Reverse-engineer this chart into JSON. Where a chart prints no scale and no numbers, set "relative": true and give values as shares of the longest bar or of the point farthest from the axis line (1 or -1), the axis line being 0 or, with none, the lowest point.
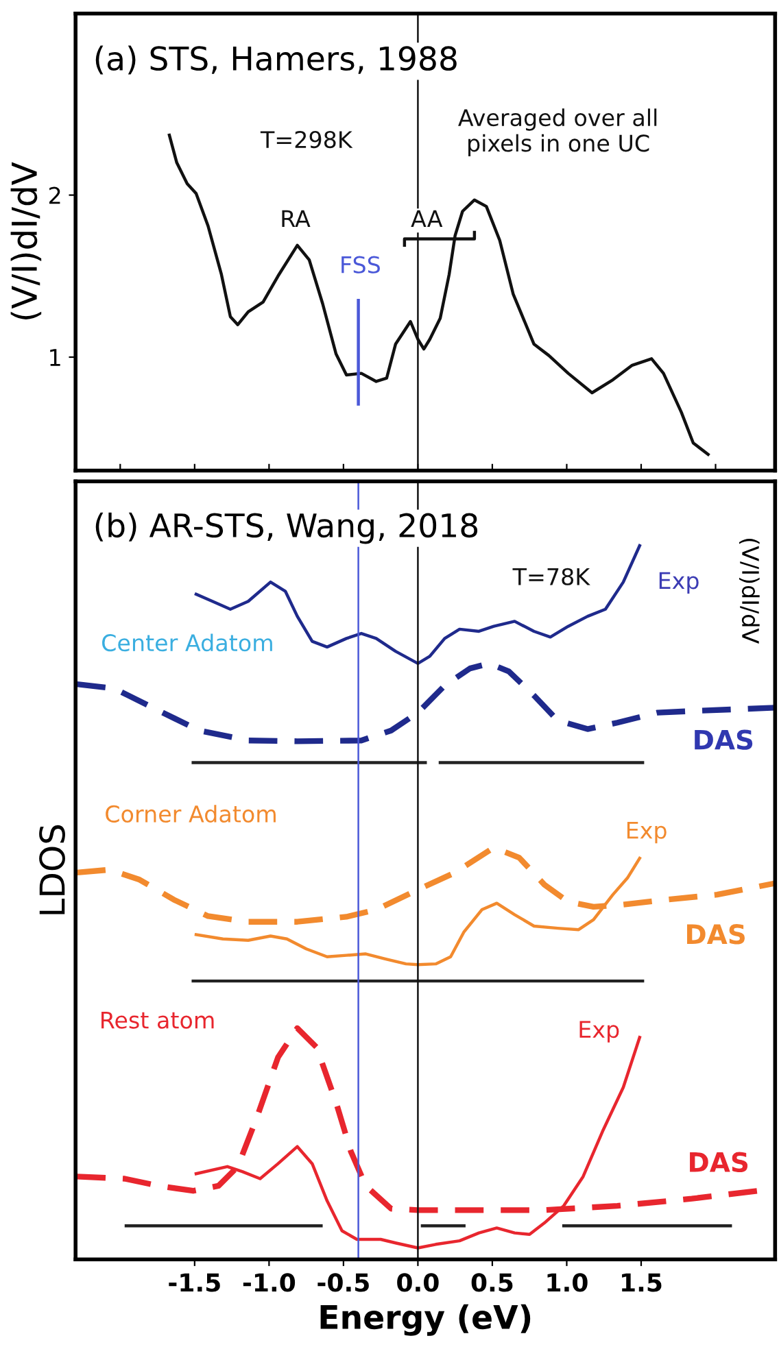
{
  "chart_data": [
    {
      "type": "line",
      "title": "(a) STS, Hamers, 1988",
      "ylabel": "(V/I)dI/dV",
      "xlim": [
        -2.3,
        2.4
      ],
      "ylim": [
        0.3,
        3.12
      ],
      "xticks": [
        {
          "value": -2.0,
          "label": null
        },
        {
          "value": -1.5,
          "label": null
        },
        {
          "value": -1.0,
          "label": null
        },
        {
          "value": -0.5,
          "label": null
        },
        {
          "value": 0.0,
          "label": null
        },
        {
          "value": 0.5,
          "label": null
        },
        {
          "value": 1.0,
          "label": null
        },
        {
          "value": 1.5,
          "label": null
        },
        {
          "value": 2.0,
          "label": null
        }
      ],
      "yticks": [
        1,
        2
      ],
      "tick_labels": "y",
      "grid": false,
      "series": [
        {
          "color": "#111111",
          "line_style": "solid",
          "x": [
            -1.67,
            -1.62,
            -1.55,
            -1.49,
            -1.41,
            -1.32,
            -1.26,
            -1.21,
            -1.14,
            -1.04,
            -0.94,
            -0.81,
            -0.73,
            -0.64,
            -0.55,
            -0.48,
            -0.38,
            -0.28,
            -0.21,
            -0.15,
            -0.05,
            0.0,
            0.04,
            0.08,
            0.15,
            0.21,
            0.25,
            0.3,
            0.38,
            0.46,
            0.55,
            0.64,
            0.78,
            0.88,
            1.01,
            1.17,
            1.31,
            1.44,
            1.57,
            1.65,
            1.77,
            1.85,
            1.95
          ],
          "values": [
            2.37,
            2.2,
            2.07,
            2.01,
            1.81,
            1.51,
            1.25,
            1.2,
            1.28,
            1.34,
            1.5,
            1.69,
            1.6,
            1.33,
            1.02,
            0.89,
            0.9,
            0.85,
            0.87,
            1.08,
            1.22,
            1.11,
            1.05,
            1.11,
            1.24,
            1.51,
            1.75,
            1.9,
            1.97,
            1.93,
            1.72,
            1.39,
            1.08,
            1.01,
            0.9,
            0.78,
            0.86,
            0.95,
            0.99,
            0.9,
            0.66,
            0.47,
            0.4
          ]
        },
        {
          "color": "#4a58d8",
          "line_style": "solid",
          "x": [
            -0.4,
            -0.4
          ],
          "values": [
            0.71,
            1.35
          ]
        },
        {
          "color": "#111111",
          "line_style": "solid",
          "x": [
            -0.09,
            -0.09,
            0.38,
            0.38
          ],
          "values": [
            1.69,
            1.73,
            1.73,
            1.77
          ]
        }
      ],
      "ref_lines": [
        {
          "axis": "x",
          "value": 0.0,
          "color": "#111111"
        }
      ],
      "annotations": [
        "T=298K",
        "Averaged over all\npixels in one UC",
        "RA",
        "AA",
        "FSS"
      ]
    },
    {
      "type": "line",
      "title": "(b) AR-STS, Wang, 2018",
      "xlabel": "Energy (eV)",
      "ylabel": "LDOS",
      "y2label": "(V/I)dI/dV",
      "relative": true,
      "xlim": [
        -2.3,
        2.4
      ],
      "xticks": [
        {
          "value": -1.5,
          "label": "-1.5"
        },
        {
          "value": -1.0,
          "label": "-1.0"
        },
        {
          "value": -0.5,
          "label": "-0.5"
        },
        {
          "value": 0.0,
          "label": "0.0"
        },
        {
          "value": 0.5,
          "label": "0.5"
        },
        {
          "value": 1.0,
          "label": "1.0"
        },
        {
          "value": 1.5,
          "label": "1.5"
        }
      ],
      "tick_labels": "x",
      "grid": false,
      "series": [
        {
          "color": "#1f2a8c",
          "line_style": "solid",
          "x": [
            -1.49,
            -1.38,
            -1.26,
            -1.14,
            -0.99,
            -0.89,
            -0.81,
            -0.71,
            -0.61,
            -0.48,
            -0.38,
            -0.28,
            -0.15,
            0.0,
            0.08,
            0.18,
            0.28,
            0.41,
            0.51,
            0.65,
            0.78,
            0.89,
            1.01,
            1.14,
            1.26,
            1.38,
            1.49
          ],
          "values": [
            0.932,
            0.922,
            0.911,
            0.922,
            0.949,
            0.936,
            0.901,
            0.866,
            0.858,
            0.87,
            0.877,
            0.87,
            0.852,
            0.835,
            0.845,
            0.87,
            0.883,
            0.88,
            0.887,
            0.894,
            0.88,
            0.872,
            0.887,
            0.901,
            0.911,
            0.949,
            1.0
          ]
        },
        {
          "color": "#1f2a8c",
          "line_style": "dashed",
          "x": [
            -2.29,
            -2.04,
            -1.81,
            -1.47,
            -1.14,
            -0.81,
            -0.38,
            -0.18,
            0.0,
            0.18,
            0.35,
            0.48,
            0.61,
            0.78,
            0.94,
            1.14,
            1.34,
            1.61,
            1.91,
            2.17,
            2.4
          ],
          "values": [
            0.806,
            0.8,
            0.776,
            0.741,
            0.727,
            0.726,
            0.727,
            0.741,
            0.766,
            0.804,
            0.828,
            0.835,
            0.824,
            0.79,
            0.755,
            0.743,
            0.752,
            0.766,
            0.769,
            0.771,
            0.773
          ]
        },
        {
          "color": "#f28a2e",
          "line_style": "dashed",
          "x": [
            -2.29,
            -2.07,
            -1.87,
            -1.64,
            -1.41,
            -1.14,
            -0.81,
            -0.48,
            -0.28,
            0.0,
            0.25,
            0.51,
            0.68,
            0.85,
            1.01,
            1.18,
            1.38,
            1.67,
            2.01,
            2.4
          ],
          "values": [
            0.542,
            0.546,
            0.532,
            0.504,
            0.481,
            0.473,
            0.473,
            0.48,
            0.49,
            0.518,
            0.542,
            0.577,
            0.563,
            0.525,
            0.501,
            0.494,
            0.497,
            0.504,
            0.511,
            0.527
          ]
        },
        {
          "color": "#f28a2e",
          "line_style": "solid",
          "x": [
            -1.49,
            -1.31,
            -1.14,
            -0.99,
            -0.88,
            -0.75,
            -0.61,
            -0.48,
            -0.35,
            -0.22,
            -0.08,
            0.0,
            0.12,
            0.22,
            0.31,
            0.43,
            0.53,
            0.65,
            0.78,
            0.94,
            1.08,
            1.18,
            1.31,
            1.41,
            1.49
          ],
          "values": [
            0.455,
            0.449,
            0.447,
            0.453,
            0.449,
            0.435,
            0.424,
            0.426,
            0.428,
            0.421,
            0.414,
            0.413,
            0.414,
            0.424,
            0.459,
            0.49,
            0.499,
            0.483,
            0.467,
            0.464,
            0.462,
            0.476,
            0.511,
            0.535,
            0.562
          ]
        },
        {
          "color": "#e8262e",
          "line_style": "dashed",
          "x": [
            -2.29,
            -1.97,
            -1.74,
            -1.51,
            -1.34,
            -1.21,
            -1.08,
            -0.94,
            -0.81,
            -0.68,
            -0.55,
            -0.45,
            -0.35,
            -0.18,
            0.0,
            0.35,
            0.85,
            1.34,
            1.84,
            2.4
          ],
          "values": [
            0.116,
            0.113,
            0.103,
            0.096,
            0.103,
            0.13,
            0.2,
            0.283,
            0.324,
            0.297,
            0.22,
            0.151,
            0.103,
            0.071,
            0.069,
            0.069,
            0.069,
            0.075,
            0.085,
            0.099
          ]
        },
        {
          "color": "#e8262e",
          "line_style": "solid",
          "x": [
            -1.49,
            -1.28,
            -1.18,
            -1.06,
            -0.94,
            -0.81,
            -0.71,
            -0.61,
            -0.51,
            -0.41,
            -0.25,
            -0.15,
            0.0,
            0.12,
            0.28,
            0.41,
            0.53,
            0.65,
            0.75,
            0.85,
            0.98,
            1.11,
            1.24,
            1.38,
            1.49
          ],
          "values": [
            0.12,
            0.13,
            0.123,
            0.113,
            0.134,
            0.158,
            0.134,
            0.082,
            0.04,
            0.028,
            0.028,
            0.023,
            0.016,
            0.021,
            0.026,
            0.037,
            0.044,
            0.037,
            0.035,
            0.051,
            0.075,
            0.116,
            0.179,
            0.241,
            0.311
          ]
        },
        {
          "color": "#222222",
          "line_style": "solid",
          "x": [
            -1.51,
            0.05
          ],
          "values": [
            0.696,
            0.696
          ]
        },
        {
          "color": "#222222",
          "line_style": "solid",
          "x": [
            0.15,
            1.51
          ],
          "values": [
            0.696,
            0.696
          ]
        },
        {
          "color": "#222222",
          "line_style": "solid",
          "x": [
            -1.51,
            1.51
          ],
          "values": [
            0.39,
            0.39
          ]
        },
        {
          "color": "#222222",
          "line_style": "solid",
          "x": [
            -1.96,
            -0.65
          ],
          "values": [
            0.047,
            0.047
          ]
        },
        {
          "color": "#222222",
          "line_style": "solid",
          "x": [
            0.03,
            0.31
          ],
          "values": [
            0.047,
            0.047
          ]
        },
        {
          "color": "#222222",
          "line_style": "solid",
          "x": [
            0.98,
            2.1
          ],
          "values": [
            0.047,
            0.047
          ]
        }
      ],
      "ref_lines": [
        {
          "axis": "x",
          "value": 0.0,
          "color": "#111111"
        },
        {
          "axis": "x",
          "value": -0.4,
          "color": "#4a58d8"
        }
      ],
      "annotations": [
        "T=78K",
        "Center Adatom",
        "Corner Adatom",
        "Rest atom",
        "Exp",
        "DAS",
        "Exp",
        "DAS",
        "Exp",
        "DAS"
      ]
    }
  ]
}
